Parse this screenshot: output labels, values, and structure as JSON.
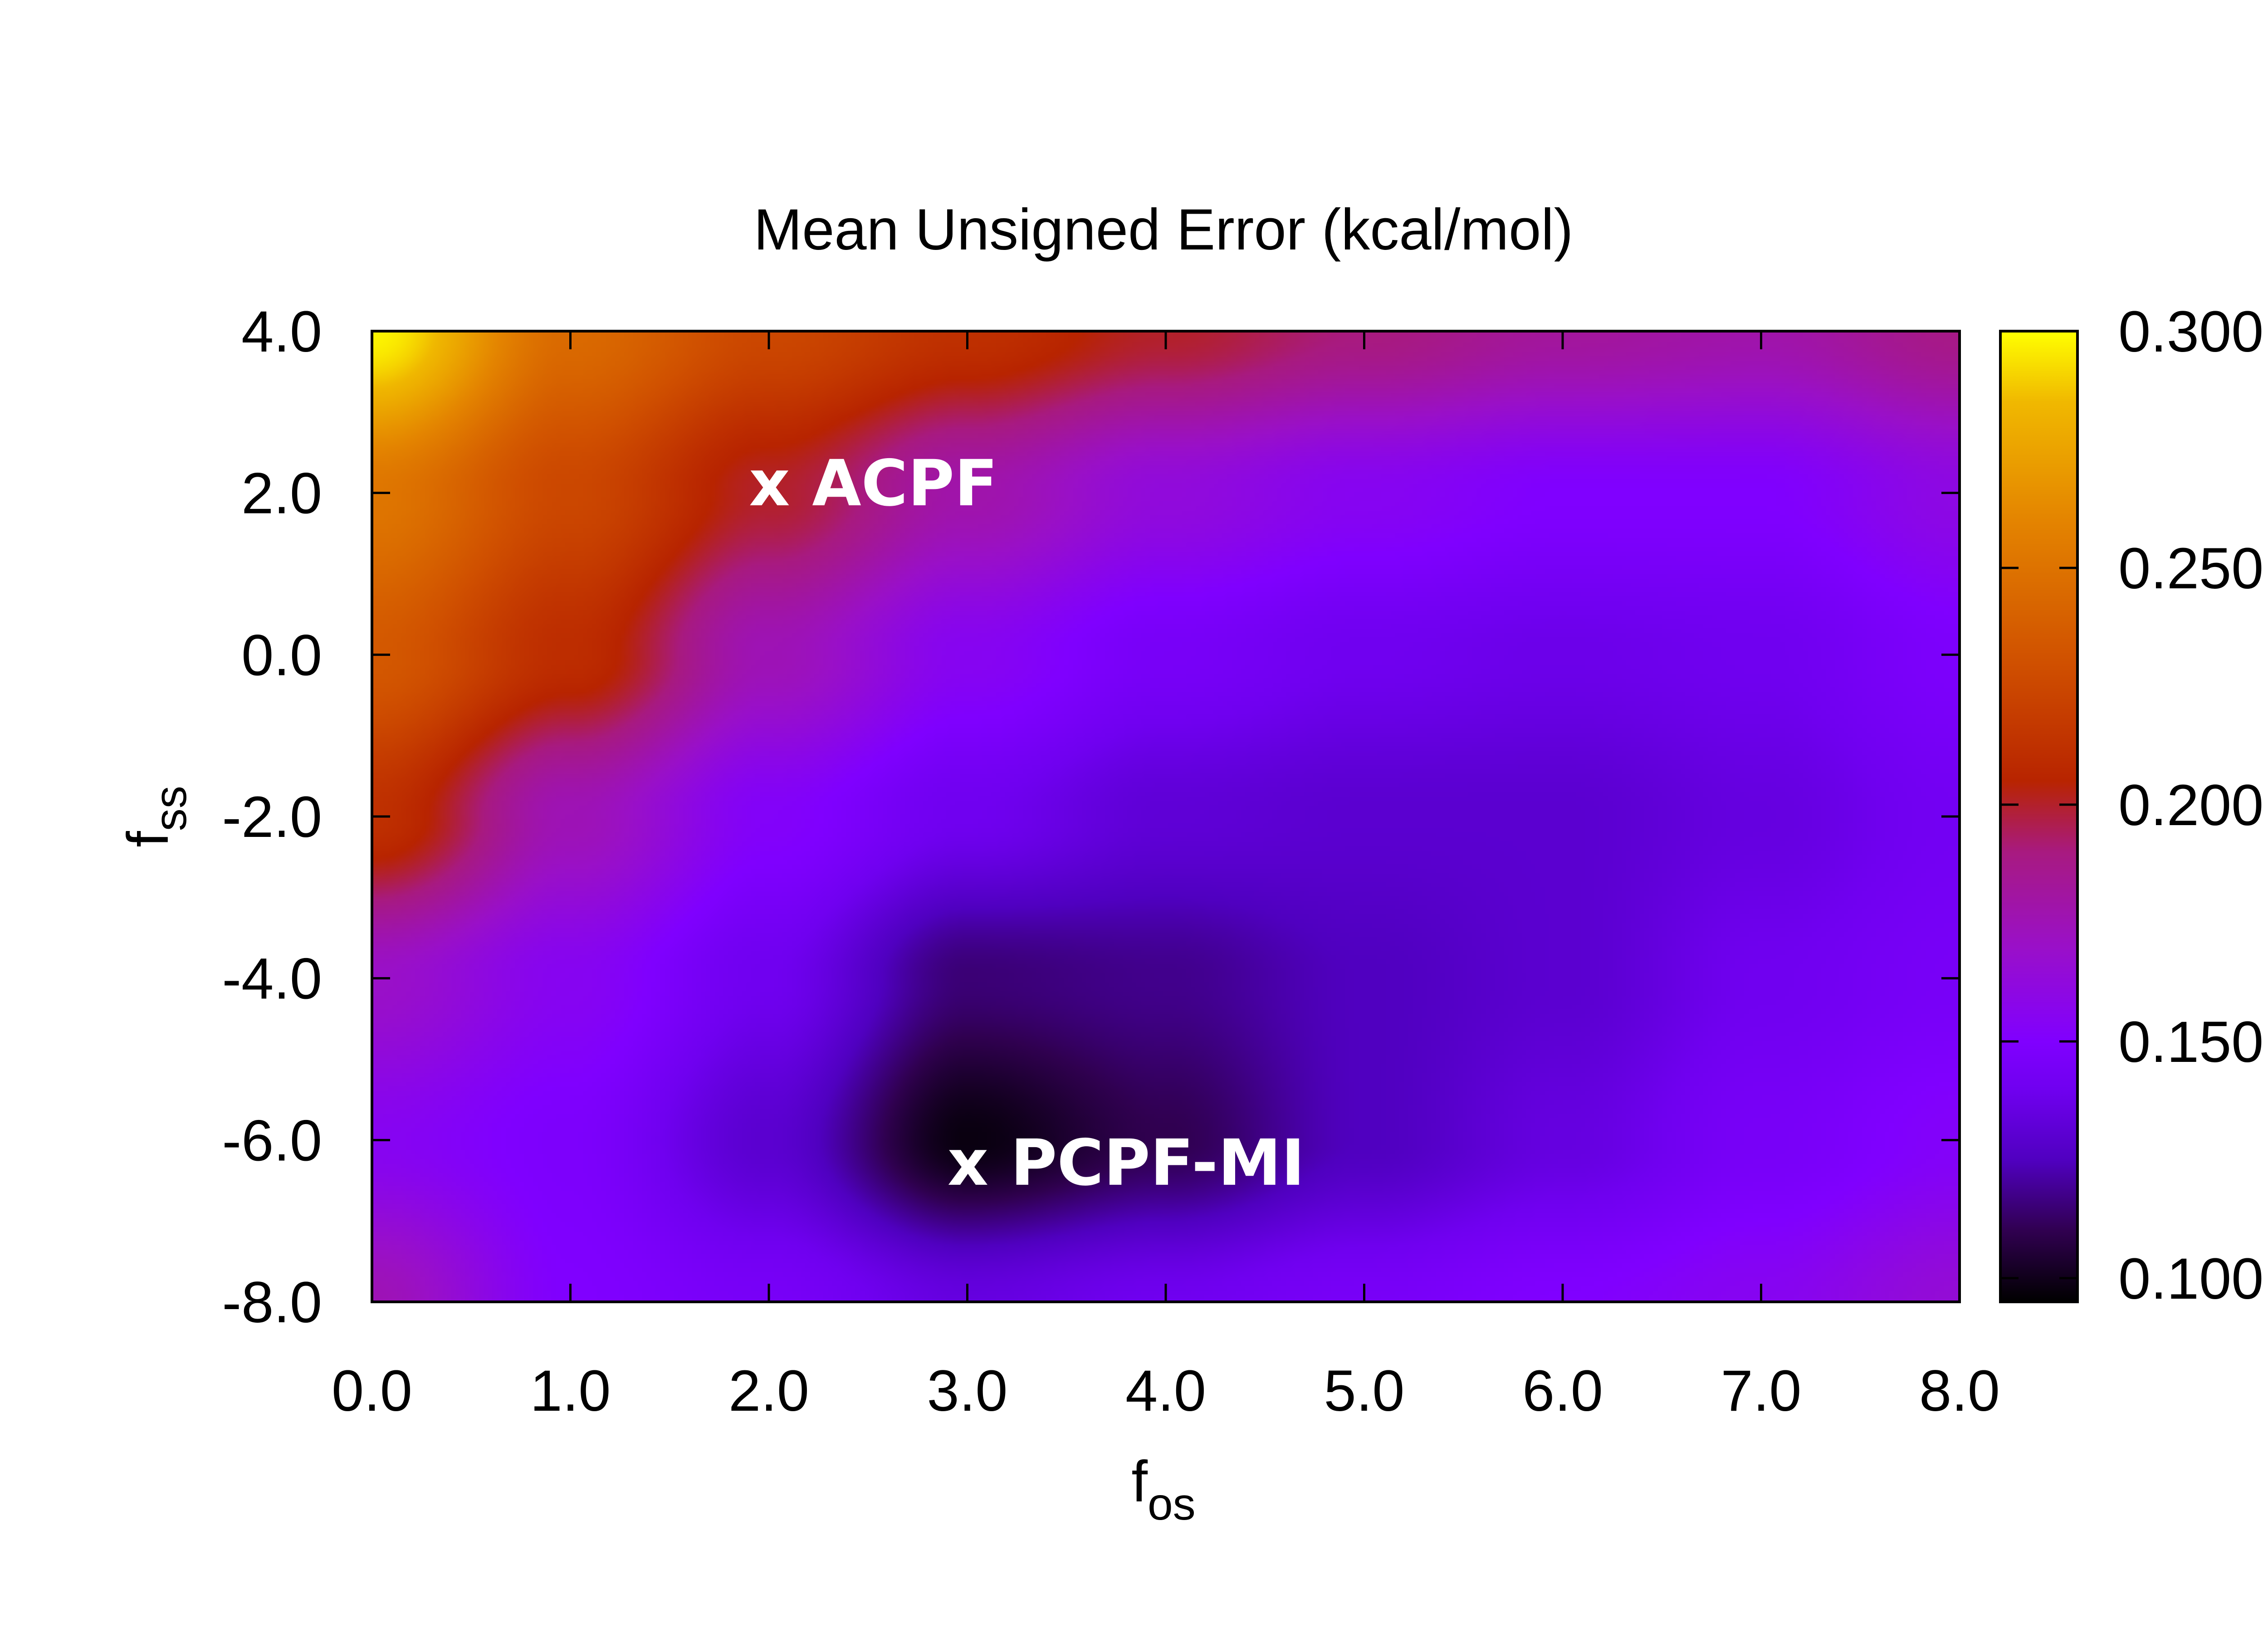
{
  "chart_data": {
    "type": "heatmap",
    "title": "Mean Unsigned Error (kcal/mol)",
    "xlabel": {
      "base": "f",
      "sub": "os"
    },
    "ylabel": {
      "base": "f",
      "sub": "ss"
    },
    "xlim": [
      0,
      8
    ],
    "ylim": [
      -8,
      4
    ],
    "x_ticks": [
      0,
      1,
      2,
      3,
      4,
      5,
      6,
      7,
      8
    ],
    "x_tick_labels": [
      "0.0",
      "1.0",
      "2.0",
      "3.0",
      "4.0",
      "5.0",
      "6.0",
      "7.0",
      "8.0"
    ],
    "y_ticks": [
      4,
      2,
      0,
      -2,
      -4,
      -6,
      -8
    ],
    "y_tick_labels": [
      "4.0",
      "2.0",
      "0.0",
      "-2.0",
      "-4.0",
      "-6.0",
      "-8.0"
    ],
    "colorbar": {
      "range": [
        0.095,
        0.3
      ],
      "ticks": [
        0.3,
        0.25,
        0.2,
        0.15,
        0.1
      ],
      "tick_labels": [
        "0.300",
        "0.250",
        "0.200",
        "0.150",
        "0.100"
      ],
      "colormap": [
        {
          "value": 0.095,
          "color": "#000000"
        },
        {
          "value": 0.11,
          "color": "#300050"
        },
        {
          "value": 0.125,
          "color": "#5000c0"
        },
        {
          "value": 0.14,
          "color": "#7000f0"
        },
        {
          "value": 0.15,
          "color": "#8000ff"
        },
        {
          "value": 0.17,
          "color": "#9a10c8"
        },
        {
          "value": 0.19,
          "color": "#a81a80"
        },
        {
          "value": 0.205,
          "color": "#b82400"
        },
        {
          "value": 0.23,
          "color": "#d05000"
        },
        {
          "value": 0.26,
          "color": "#e48400"
        },
        {
          "value": 0.285,
          "color": "#f0b800"
        },
        {
          "value": 0.3,
          "color": "#ffff00"
        }
      ]
    },
    "surface_estimate": {
      "grid_x": [
        0,
        1,
        2,
        3,
        4,
        5,
        6,
        7,
        8
      ],
      "grid_y": [
        4,
        2,
        0,
        -2,
        -4,
        -6,
        -8
      ],
      "values": [
        [
          0.298,
          0.245,
          0.225,
          0.212,
          0.2,
          0.19,
          0.182,
          0.178,
          0.188
        ],
        [
          0.252,
          0.225,
          0.2,
          0.178,
          0.163,
          0.155,
          0.15,
          0.15,
          0.16
        ],
        [
          0.235,
          0.21,
          0.175,
          0.155,
          0.145,
          0.14,
          0.138,
          0.14,
          0.148
        ],
        [
          0.212,
          0.175,
          0.152,
          0.14,
          0.132,
          0.13,
          0.13,
          0.135,
          0.142
        ],
        [
          0.17,
          0.155,
          0.14,
          0.115,
          0.118,
          0.125,
          0.13,
          0.14,
          0.145
        ],
        [
          0.155,
          0.148,
          0.13,
          0.098,
          0.11,
          0.125,
          0.135,
          0.145,
          0.152
        ],
        [
          0.175,
          0.15,
          0.145,
          0.135,
          0.14,
          0.145,
          0.15,
          0.155,
          0.165
        ]
      ]
    },
    "annotations": [
      {
        "text": "x ACPF",
        "x": 1.9,
        "y": 2.1
      },
      {
        "text": "x PCPF-MI",
        "x": 2.9,
        "y": -6.3
      }
    ]
  }
}
